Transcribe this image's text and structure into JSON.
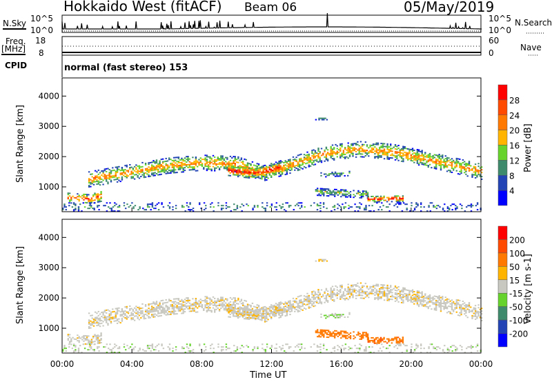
{
  "header": {
    "title": "Hokkaido West (fitACF)",
    "beam": "Beam 06",
    "date": "05/May/2019"
  },
  "noise_panel": {
    "left_label": "N.Sky",
    "right_label": "N.Search",
    "left_ticks": [
      "10^5",
      "10^0"
    ],
    "right_ticks": [
      "10^5",
      "10^0"
    ]
  },
  "freq_panel": {
    "left_label_1": "Freq.",
    "left_label_2": "[MHz]",
    "right_label": "Nave",
    "left_ticks": [
      "18",
      "8"
    ],
    "right_ticks": [
      "60",
      "0"
    ]
  },
  "cpid": {
    "label": "CPID",
    "value": "normal (fast stereo) 153"
  },
  "chart_data": [
    {
      "type": "scatter",
      "name": "power",
      "ylabel": "Slant Range [km]",
      "ylim": [
        180,
        4600
      ],
      "yticks": [
        "1000",
        "2000",
        "3000",
        "4000"
      ],
      "colorbar": {
        "label": "Power [dB]",
        "ticks": [
          "4",
          "8",
          "12",
          "16",
          "20",
          "24",
          "28"
        ],
        "colors": [
          "#0000ff",
          "#2244b4",
          "#3e8a6c",
          "#66d22c",
          "#ffb400",
          "#ff7800",
          "#ff4a00",
          "#ff0000"
        ]
      }
    },
    {
      "type": "scatter",
      "name": "velocity",
      "ylabel": "Slant Range [km]",
      "ylim": [
        180,
        4600
      ],
      "yticks": [
        "1000",
        "2000",
        "3000",
        "4000"
      ],
      "colorbar": {
        "label": "Velocity [m s-1]",
        "ticks": [
          "200",
          "100",
          "50",
          "15",
          "-15",
          "-50",
          "-100",
          "-200"
        ],
        "colors": [
          "#0000ff",
          "#2244b4",
          "#3e8a6c",
          "#66d22c",
          "#c8c8c0",
          "#ffb400",
          "#ff7800",
          "#ff4a00",
          "#ff0000"
        ]
      }
    }
  ],
  "xaxis": {
    "label": "Time UT",
    "xlim_hours": [
      0,
      24
    ],
    "ticks": [
      "00:00",
      "04:00",
      "08:00",
      "12:00",
      "16:00",
      "20:00",
      "00:00"
    ]
  },
  "echo_bands": [
    {
      "path": [
        [
          1.5,
          1250
        ],
        [
          4,
          1500
        ],
        [
          6,
          1700
        ],
        [
          8,
          1800
        ],
        [
          10,
          1750
        ],
        [
          11.5,
          1450
        ],
        [
          13,
          1700
        ],
        [
          15,
          2100
        ],
        [
          17,
          2250
        ],
        [
          19,
          2150
        ],
        [
          21,
          1900
        ],
        [
          24,
          1500
        ]
      ],
      "width_km": 500,
      "power_db": 22,
      "velocity": -5,
      "density": 0.7
    },
    {
      "path": [
        [
          9.5,
          1550
        ],
        [
          11,
          1450
        ],
        [
          12.5,
          1650
        ]
      ],
      "width_km": 350,
      "power_db": 30,
      "velocity": -8,
      "density": 0.8
    },
    {
      "path": [
        [
          0.3,
          650
        ],
        [
          1.5,
          600
        ],
        [
          2.2,
          700
        ]
      ],
      "width_km": 350,
      "power_db": 26,
      "velocity": -5,
      "density": 0.6
    },
    {
      "path": [
        [
          14.5,
          850
        ],
        [
          16,
          800
        ],
        [
          17.5,
          750
        ]
      ],
      "width_km": 250,
      "power_db": 14,
      "velocity": -70,
      "density": 0.75
    },
    {
      "path": [
        [
          17.5,
          600
        ],
        [
          19.5,
          620
        ]
      ],
      "width_km": 200,
      "power_db": 30,
      "velocity": -90,
      "density": 0.8
    },
    {
      "path": [
        [
          14.8,
          1400
        ],
        [
          16.5,
          1450
        ]
      ],
      "width_km": 150,
      "power_db": 12,
      "velocity": 10,
      "density": 0.5
    },
    {
      "path": [
        [
          14.5,
          3250
        ],
        [
          15.2,
          3250
        ]
      ],
      "width_km": 60,
      "power_db": 14,
      "velocity": -20,
      "density": 0.9
    },
    {
      "path": [
        [
          0,
          350
        ],
        [
          24,
          350
        ]
      ],
      "width_km": 300,
      "power_db": 10,
      "velocity": 5,
      "density": 0.25
    }
  ]
}
